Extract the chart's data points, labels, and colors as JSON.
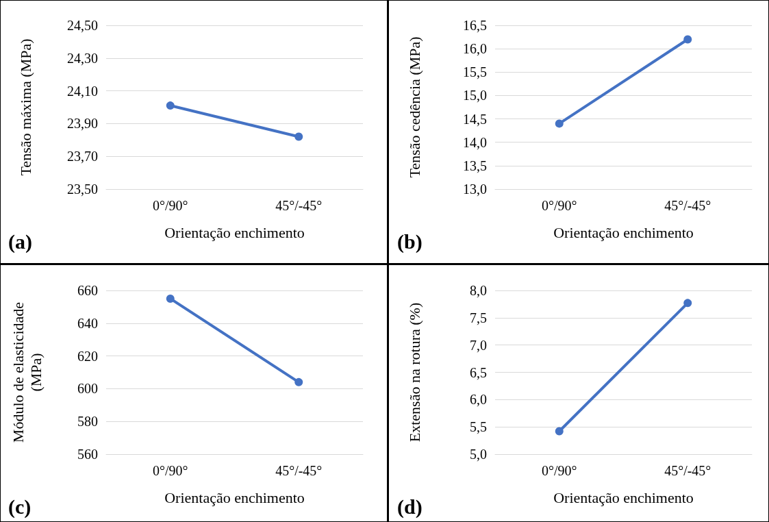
{
  "chart_data": [
    {
      "type": "line",
      "categories": [
        "0°/90°",
        "45°/-45°"
      ],
      "xlabel": "Orientação enchimento",
      "ylabel": "Tensão máxima (MPa)",
      "annotations": [
        "(a)"
      ],
      "series": [
        {
          "color": "#4472c4",
          "values": [
            24.01,
            23.82
          ]
        }
      ],
      "ylim": [
        23.5,
        24.5
      ],
      "yticks": [
        {
          "value": 23.5,
          "label": "23,50"
        },
        {
          "value": 23.7,
          "label": "23,70"
        },
        {
          "value": 23.9,
          "label": "23,90"
        },
        {
          "value": 24.1,
          "label": "24,10"
        },
        {
          "value": 24.3,
          "label": "24,30"
        },
        {
          "value": 24.5,
          "label": "24,50"
        }
      ],
      "grid": "y",
      "marker": "circle",
      "line_style": "solid"
    },
    {
      "type": "line",
      "categories": [
        "0°/90°",
        "45°/-45°"
      ],
      "xlabel": "Orientação enchimento",
      "ylabel": "Tensão cedência (MPa)",
      "annotations": [
        "(b)"
      ],
      "series": [
        {
          "color": "#4472c4",
          "values": [
            14.4,
            16.2
          ]
        }
      ],
      "ylim": [
        13,
        16.5
      ],
      "yticks": [
        {
          "value": 13,
          "label": "13,0"
        },
        {
          "value": 13.5,
          "label": "13,5"
        },
        {
          "value": 14,
          "label": "14,0"
        },
        {
          "value": 14.5,
          "label": "14,5"
        },
        {
          "value": 15,
          "label": "15,0"
        },
        {
          "value": 15.5,
          "label": "15,5"
        },
        {
          "value": 16,
          "label": "16,0"
        },
        {
          "value": 16.5,
          "label": "16,5"
        }
      ],
      "grid": "y",
      "marker": "circle",
      "line_style": "solid"
    },
    {
      "type": "line",
      "categories": [
        "0°/90°",
        "45°/-45°"
      ],
      "xlabel": "Orientação enchimento",
      "ylabel": "Módulo de elasticidade\n(MPa)",
      "annotations": [
        "(c)"
      ],
      "series": [
        {
          "color": "#4472c4",
          "values": [
            655,
            604
          ]
        }
      ],
      "ylim": [
        560,
        660
      ],
      "yticks": [
        560,
        580,
        600,
        620,
        640,
        660
      ],
      "grid": "y",
      "marker": "circle",
      "line_style": "solid"
    },
    {
      "type": "line",
      "categories": [
        "0°/90°",
        "45°/-45°"
      ],
      "xlabel": "Orientação enchimento",
      "ylabel": "Extensão na rotura (%)",
      "annotations": [
        "(d)"
      ],
      "series": [
        {
          "color": "#4472c4",
          "values": [
            5.42,
            7.77
          ]
        }
      ],
      "ylim": [
        5,
        8
      ],
      "yticks": [
        {
          "value": 5,
          "label": "5,0"
        },
        {
          "value": 5.5,
          "label": "5,5"
        },
        {
          "value": 6,
          "label": "6,0"
        },
        {
          "value": 6.5,
          "label": "6,5"
        },
        {
          "value": 7,
          "label": "7,0"
        },
        {
          "value": 7.5,
          "label": "7,5"
        },
        {
          "value": 8,
          "label": "8,0"
        }
      ],
      "grid": "y",
      "marker": "circle",
      "line_style": "solid"
    }
  ]
}
